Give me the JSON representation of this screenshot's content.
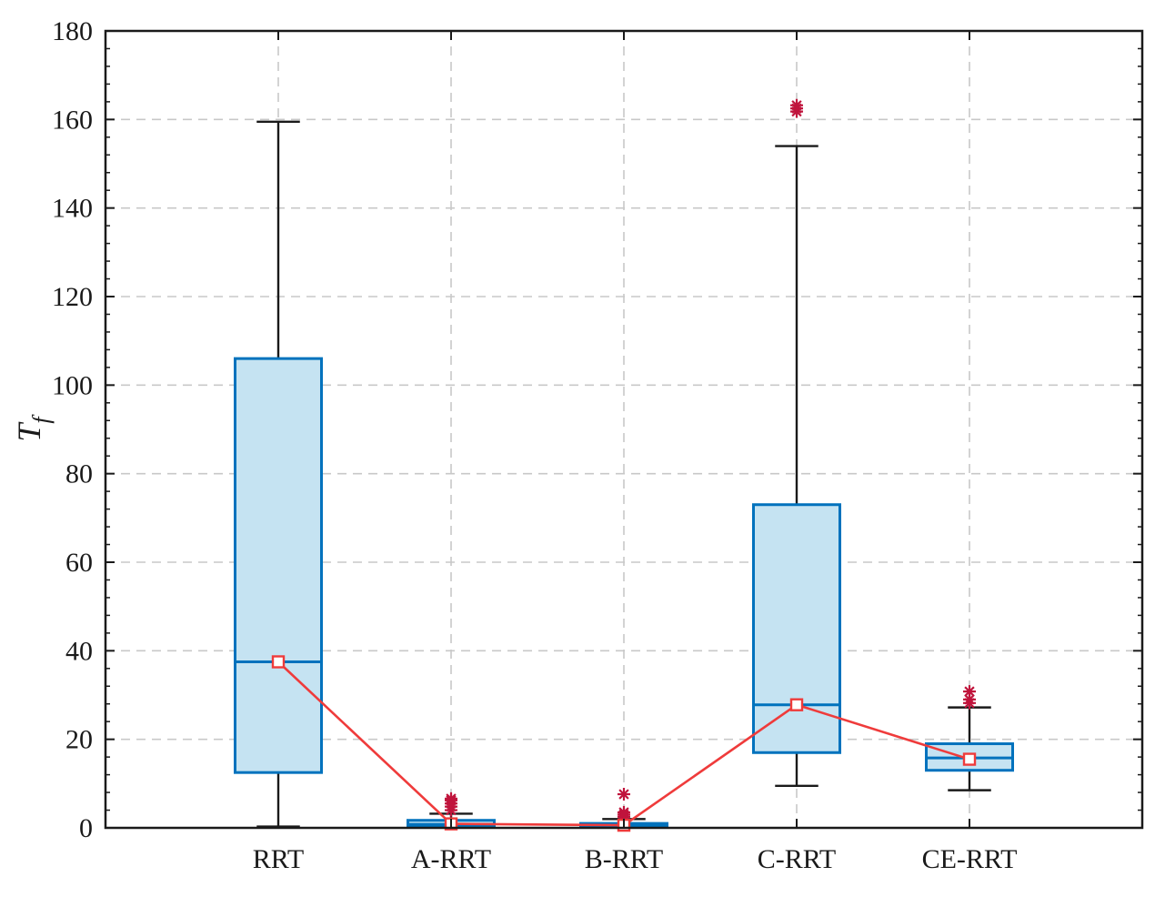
{
  "chart_data": {
    "type": "box",
    "ylabel_main": "T",
    "ylabel_sub": "f",
    "xlabel": "",
    "title": "",
    "ylim": [
      0,
      180
    ],
    "yticks": [
      0,
      20,
      40,
      60,
      80,
      100,
      120,
      140,
      160,
      180
    ],
    "grid": true,
    "categories": [
      "RRT",
      "A-RRT",
      "B-RRT",
      "C-RRT",
      "CE-RRT"
    ],
    "boxes": [
      {
        "category": "RRT",
        "whisker_low": 0.3,
        "q1": 12.5,
        "median": 37.5,
        "q3": 106,
        "whisker_high": 159.5,
        "outliers": []
      },
      {
        "category": "A-RRT",
        "whisker_low": 0.1,
        "q1": 0.3,
        "median": 0.8,
        "q3": 1.7,
        "whisker_high": 3.2,
        "outliers": [
          4.0,
          4.8,
          5.5,
          6.2,
          6.6
        ]
      },
      {
        "category": "B-RRT",
        "whisker_low": 0.1,
        "q1": 0.2,
        "median": 0.5,
        "q3": 1.0,
        "whisker_high": 2.0,
        "outliers": [
          2.5,
          3.0,
          3.5,
          7.6
        ]
      },
      {
        "category": "C-RRT",
        "whisker_low": 9.5,
        "q1": 17,
        "median": 27.8,
        "q3": 73,
        "whisker_high": 154,
        "outliers": [
          161.8,
          162.5,
          163.2
        ]
      },
      {
        "category": "CE-RRT",
        "whisker_low": 8.5,
        "q1": 13,
        "median": 15.8,
        "q3": 19,
        "whisker_high": 27.2,
        "outliers": [
          28.2,
          29.0,
          30.8
        ]
      }
    ],
    "mean_line": {
      "values": [
        37.5,
        0.9,
        0.6,
        27.8,
        15.5
      ]
    },
    "colors": {
      "box_edge": "#0072bd",
      "box_fill": "#c5e3f2",
      "whisker": "#1a1a1a",
      "outlier": "#c0143c",
      "mean_line": "#ef3b3b",
      "grid": "#c8c8c8",
      "axis": "#1a1a1a"
    }
  }
}
